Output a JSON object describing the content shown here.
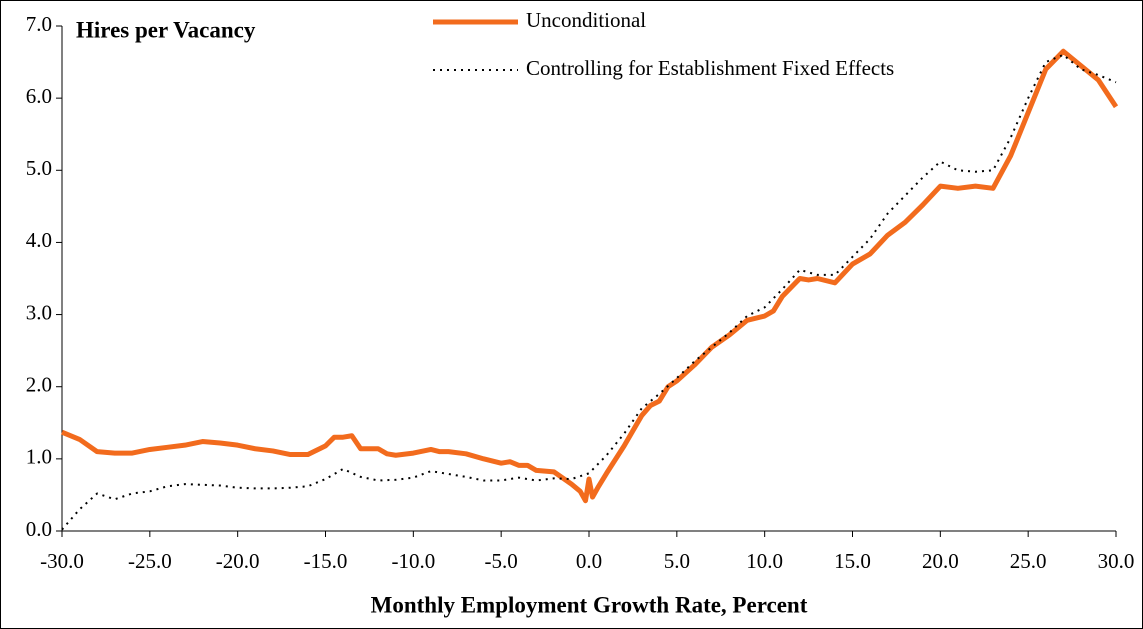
{
  "chart_data": {
    "type": "line",
    "title": "Hires per Vacancy",
    "x_label": "Monthly Employment Growth  Rate, Percent",
    "xlim": [
      -30,
      30
    ],
    "xticks": [
      {
        "value": -30,
        "label": "-30.0"
      },
      {
        "value": -25,
        "label": "-25.0"
      },
      {
        "value": -20,
        "label": "-20.0"
      },
      {
        "value": -15,
        "label": "-15.0"
      },
      {
        "value": -10,
        "label": "-10.0"
      },
      {
        "value": -5,
        "label": "-5.0"
      },
      {
        "value": 0,
        "label": "0.0"
      },
      {
        "value": 5,
        "label": "5.0"
      },
      {
        "value": 10,
        "label": "10.0"
      },
      {
        "value": 15,
        "label": "15.0"
      },
      {
        "value": 20,
        "label": "20.0"
      },
      {
        "value": 25,
        "label": "25.0"
      },
      {
        "value": 30,
        "label": "30.0"
      }
    ],
    "ylim": [
      0,
      7
    ],
    "yticks": [
      {
        "value": 0,
        "label": "0.0"
      },
      {
        "value": 1,
        "label": "1.0"
      },
      {
        "value": 2,
        "label": "2.0"
      },
      {
        "value": 3,
        "label": "3.0"
      },
      {
        "value": 4,
        "label": "4.0"
      },
      {
        "value": 5,
        "label": "5.0"
      },
      {
        "value": 6,
        "label": "6.0"
      },
      {
        "value": 7,
        "label": "7.0"
      }
    ],
    "series": [
      {
        "name": "Unconditional",
        "color": "#f26b1d",
        "style": "solid",
        "x": [
          -30,
          -29,
          -28,
          -27,
          -26,
          -25,
          -24,
          -23,
          -22,
          -21,
          -20,
          -19,
          -18,
          -17,
          -16,
          -15,
          -14.5,
          -14,
          -13.5,
          -13,
          -12,
          -11.5,
          -11,
          -10,
          -9,
          -8.5,
          -8,
          -7,
          -6,
          -5,
          -4.5,
          -4,
          -3.5,
          -3,
          -2,
          -1,
          -0.5,
          -0.2,
          0,
          0.2,
          0.5,
          1,
          2,
          3,
          3.5,
          4,
          4.5,
          5,
          6,
          7,
          8,
          9,
          10,
          10.5,
          11,
          12,
          12.5,
          13,
          14,
          15,
          16,
          17,
          18,
          19,
          20,
          21,
          22,
          23,
          24,
          25,
          26,
          27,
          28,
          29,
          30
        ],
        "values": [
          1.37,
          1.27,
          1.1,
          1.08,
          1.08,
          1.13,
          1.16,
          1.19,
          1.24,
          1.22,
          1.19,
          1.14,
          1.11,
          1.06,
          1.06,
          1.18,
          1.3,
          1.3,
          1.32,
          1.14,
          1.14,
          1.07,
          1.05,
          1.08,
          1.13,
          1.1,
          1.1,
          1.07,
          1.0,
          0.94,
          0.96,
          0.91,
          0.91,
          0.84,
          0.82,
          0.65,
          0.55,
          0.42,
          0.72,
          0.47,
          0.6,
          0.8,
          1.18,
          1.6,
          1.74,
          1.8,
          2.0,
          2.08,
          2.3,
          2.55,
          2.72,
          2.92,
          2.98,
          3.05,
          3.25,
          3.5,
          3.48,
          3.5,
          3.44,
          3.7,
          3.84,
          4.1,
          4.28,
          4.52,
          4.78,
          4.75,
          4.78,
          4.75,
          5.2,
          5.8,
          6.4,
          6.65,
          6.45,
          6.25,
          5.88
        ]
      },
      {
        "name": "Controlling for Establishment Fixed Effects",
        "color": "#000000",
        "style": "dotted",
        "x": [
          -30,
          -29,
          -28,
          -27.5,
          -27,
          -26,
          -25,
          -24,
          -23,
          -22,
          -21,
          -20,
          -19,
          -18,
          -17,
          -16,
          -15,
          -14,
          -13,
          -12,
          -11,
          -10,
          -9,
          -8,
          -7,
          -6,
          -5,
          -4,
          -3,
          -2,
          -1,
          0,
          1,
          2,
          3,
          4,
          5,
          6,
          7,
          8,
          9,
          10,
          11,
          12,
          13,
          14,
          15,
          16,
          17,
          18,
          19,
          20,
          21,
          22,
          23,
          24,
          25,
          26,
          27,
          28,
          29,
          30
        ],
        "values": [
          0.02,
          0.3,
          0.52,
          0.48,
          0.44,
          0.52,
          0.55,
          0.62,
          0.65,
          0.64,
          0.63,
          0.6,
          0.59,
          0.59,
          0.6,
          0.62,
          0.72,
          0.86,
          0.75,
          0.7,
          0.71,
          0.74,
          0.83,
          0.79,
          0.75,
          0.7,
          0.7,
          0.74,
          0.7,
          0.73,
          0.72,
          0.8,
          1.05,
          1.35,
          1.7,
          1.9,
          2.12,
          2.35,
          2.55,
          2.75,
          2.98,
          3.1,
          3.35,
          3.62,
          3.55,
          3.55,
          3.8,
          4.05,
          4.4,
          4.65,
          4.9,
          5.12,
          5.0,
          4.98,
          5.0,
          5.45,
          6.0,
          6.5,
          6.6,
          6.4,
          6.32,
          6.22
        ]
      }
    ]
  }
}
